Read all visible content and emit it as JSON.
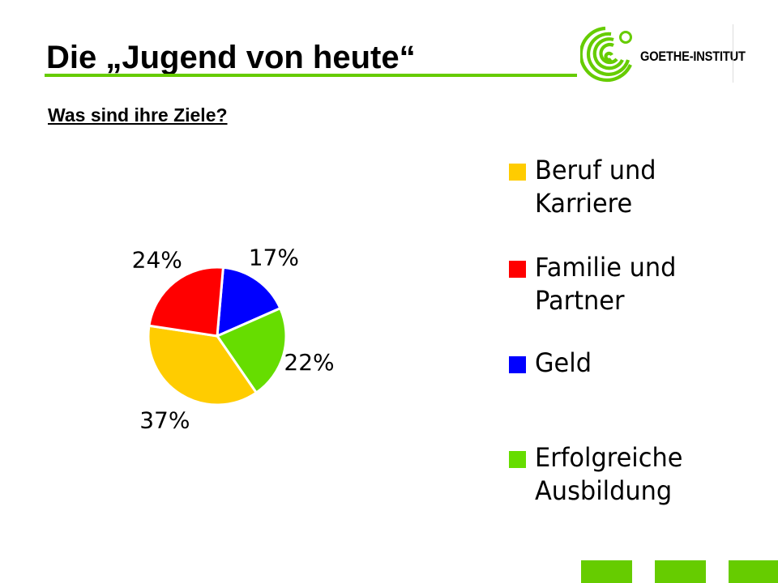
{
  "slide": {
    "title": "Die „Jugend von heute“",
    "subtitle": "Was sind ihre Ziele?"
  },
  "logo": {
    "text": "GOETHE-INSTITUT",
    "color": "#66cc00"
  },
  "chart_data": {
    "type": "pie",
    "title": "",
    "slices": [
      {
        "label": "Beruf und Karriere",
        "value": 37,
        "display": "37%",
        "color": "#ffcc00"
      },
      {
        "label": "Familie und Partner",
        "value": 24,
        "display": "24%",
        "color": "#ff0000"
      },
      {
        "label": "Geld",
        "value": 17,
        "display": "17%",
        "color": "#0000ff"
      },
      {
        "label": "Erfolgreiche Ausbildung",
        "value": 22,
        "display": "22%",
        "color": "#66dd00"
      }
    ],
    "legend_position": "right"
  },
  "legend": {
    "items": [
      {
        "label": "Beruf und\nKarriere",
        "color": "#ffcc00"
      },
      {
        "label": "Familie und\nPartner",
        "color": "#ff0000"
      },
      {
        "label": "Geld",
        "color": "#0000ff"
      },
      {
        "label": "Erfolgreiche\nAusbildung",
        "color": "#66dd00"
      }
    ]
  },
  "nav": {
    "button_color": "#66cc00",
    "button_count": 3
  }
}
